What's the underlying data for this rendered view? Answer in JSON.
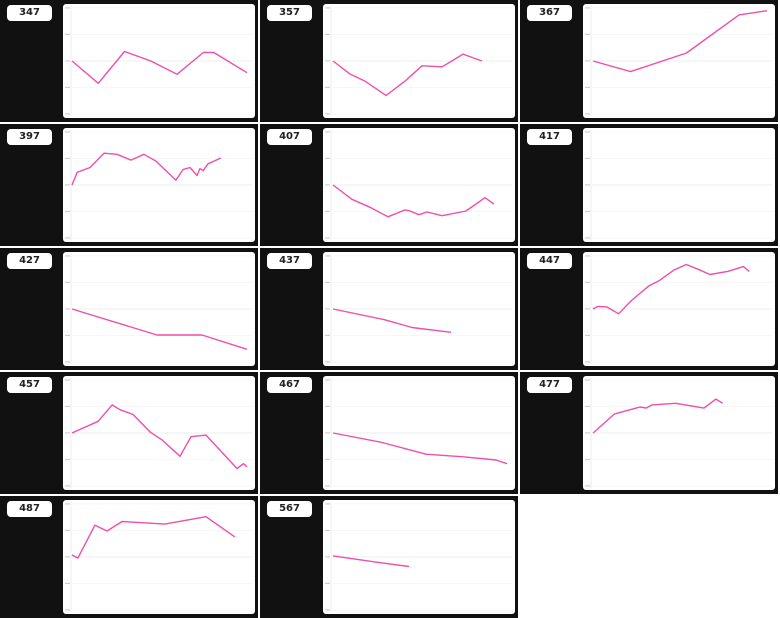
{
  "line_color": "#ef4fa8",
  "chart_data": [
    {
      "type": "line",
      "title": "347",
      "ylim": [
        -1,
        1
      ],
      "xlim": [
        0,
        100
      ],
      "grid": true,
      "points": [
        [
          0,
          0
        ],
        [
          15,
          -0.42
        ],
        [
          30,
          0.18
        ],
        [
          45,
          0
        ],
        [
          60,
          -0.25
        ],
        [
          75,
          0.16
        ],
        [
          81,
          0.16
        ],
        [
          100,
          -0.22
        ]
      ]
    },
    {
      "type": "line",
      "title": "357",
      "ylim": [
        -1,
        1
      ],
      "xlim": [
        0,
        100
      ],
      "grid": true,
      "points": [
        [
          0.6,
          0
        ],
        [
          10,
          -0.24
        ],
        [
          18.8,
          -0.38
        ],
        [
          30.9,
          -0.65
        ],
        [
          41.7,
          -0.38
        ],
        [
          51.4,
          -0.09
        ],
        [
          62.9,
          -0.11
        ],
        [
          74.9,
          0.13
        ],
        [
          85.7,
          0
        ]
      ]
    },
    {
      "type": "line",
      "title": "367",
      "ylim": [
        -1,
        1
      ],
      "xlim": [
        0,
        100
      ],
      "grid": true,
      "points": [
        [
          0.6,
          0
        ],
        [
          22,
          -0.2
        ],
        [
          54,
          0.15
        ],
        [
          84,
          0.87
        ],
        [
          100,
          0.95
        ]
      ]
    },
    {
      "type": "line",
      "title": "397",
      "ylim": [
        -1,
        1
      ],
      "xlim": [
        0,
        100
      ],
      "grid": true,
      "points": [
        [
          0,
          0
        ],
        [
          3,
          0.24
        ],
        [
          10.3,
          0.33
        ],
        [
          18.3,
          0.6
        ],
        [
          25.7,
          0.58
        ],
        [
          33.7,
          0.47
        ],
        [
          41.1,
          0.58
        ],
        [
          48,
          0.45
        ],
        [
          59.4,
          0.09
        ],
        [
          63.4,
          0.29
        ],
        [
          67.4,
          0.33
        ],
        [
          71.4,
          0.18
        ],
        [
          73.1,
          0.31
        ],
        [
          74.9,
          0.27
        ],
        [
          77.7,
          0.4
        ],
        [
          85.1,
          0.51
        ]
      ]
    },
    {
      "type": "line",
      "title": "407",
      "ylim": [
        -1,
        1
      ],
      "xlim": [
        0,
        100
      ],
      "grid": true,
      "points": [
        [
          0.6,
          0
        ],
        [
          11.4,
          -0.27
        ],
        [
          21.7,
          -0.42
        ],
        [
          32,
          -0.6
        ],
        [
          41.7,
          -0.47
        ],
        [
          44.6,
          -0.49
        ],
        [
          49.7,
          -0.56
        ],
        [
          54.3,
          -0.51
        ],
        [
          62.9,
          -0.58
        ],
        [
          76.6,
          -0.49
        ],
        [
          87.4,
          -0.24
        ],
        [
          92.6,
          -0.36
        ]
      ]
    },
    {
      "type": "line",
      "title": "417",
      "ylim": [
        -1,
        1
      ],
      "xlim": [
        0,
        100
      ],
      "grid": true,
      "points": []
    },
    {
      "type": "line",
      "title": "427",
      "ylim": [
        -1,
        1
      ],
      "xlim": [
        0,
        100
      ],
      "grid": true,
      "points": [
        [
          0,
          0
        ],
        [
          48.6,
          -0.49
        ],
        [
          74.3,
          -0.49
        ],
        [
          100,
          -0.76
        ]
      ]
    },
    {
      "type": "line",
      "title": "437",
      "ylim": [
        -1,
        1
      ],
      "xlim": [
        0,
        100
      ],
      "grid": true,
      "points": [
        [
          0.6,
          0
        ],
        [
          29.7,
          -0.2
        ],
        [
          45.7,
          -0.35
        ],
        [
          68,
          -0.44
        ]
      ]
    },
    {
      "type": "line",
      "title": "447",
      "ylim": [
        -1,
        1
      ],
      "xlim": [
        0,
        100
      ],
      "grid": true,
      "points": [
        [
          0.6,
          0
        ],
        [
          3.4,
          0.05
        ],
        [
          8.4,
          0.04
        ],
        [
          15.2,
          -0.09
        ],
        [
          22.5,
          0.16
        ],
        [
          32.6,
          0.44
        ],
        [
          38.2,
          0.53
        ],
        [
          46.6,
          0.73
        ],
        [
          53.9,
          0.84
        ],
        [
          60.7,
          0.75
        ],
        [
          67.4,
          0.65
        ],
        [
          77.5,
          0.71
        ],
        [
          86.5,
          0.8
        ],
        [
          89.9,
          0.71
        ]
      ]
    },
    {
      "type": "line",
      "title": "457",
      "ylim": [
        -1,
        1
      ],
      "xlim": [
        0,
        100
      ],
      "grid": true,
      "points": [
        [
          0,
          0
        ],
        [
          14.9,
          0.22
        ],
        [
          22.9,
          0.53
        ],
        [
          27.4,
          0.44
        ],
        [
          34.9,
          0.35
        ],
        [
          44.6,
          0.02
        ],
        [
          51.4,
          -0.13
        ],
        [
          61.7,
          -0.44
        ],
        [
          68,
          -0.07
        ],
        [
          76.6,
          -0.04
        ],
        [
          94.3,
          -0.67
        ],
        [
          98,
          -0.58
        ],
        [
          100,
          -0.64
        ]
      ]
    },
    {
      "type": "line",
      "title": "467",
      "ylim": [
        -1,
        1
      ],
      "xlim": [
        0,
        100
      ],
      "grid": true,
      "points": [
        [
          0.6,
          0
        ],
        [
          28.6,
          -0.18
        ],
        [
          53.7,
          -0.4
        ],
        [
          74.9,
          -0.45
        ],
        [
          93.7,
          -0.51
        ],
        [
          100,
          -0.58
        ]
      ]
    },
    {
      "type": "line",
      "title": "477",
      "ylim": [
        -1,
        1
      ],
      "xlim": [
        0,
        100
      ],
      "grid": true,
      "points": [
        [
          0.6,
          0
        ],
        [
          12.9,
          0.36
        ],
        [
          27.5,
          0.49
        ],
        [
          30.9,
          0.47
        ],
        [
          34.3,
          0.53
        ],
        [
          47.8,
          0.56
        ],
        [
          64,
          0.47
        ],
        [
          70.8,
          0.64
        ],
        [
          74.7,
          0.56
        ]
      ]
    },
    {
      "type": "line",
      "title": "487",
      "ylim": [
        -1,
        1
      ],
      "xlim": [
        0,
        100
      ],
      "grid": true,
      "points": [
        [
          0,
          0.04
        ],
        [
          3.4,
          -0.02
        ],
        [
          13.1,
          0.6
        ],
        [
          20,
          0.49
        ],
        [
          28.6,
          0.67
        ],
        [
          53.1,
          0.62
        ],
        [
          76.6,
          0.76
        ],
        [
          93.1,
          0.38
        ]
      ]
    },
    {
      "type": "line",
      "title": "567",
      "ylim": [
        -1,
        1
      ],
      "xlim": [
        0,
        100
      ],
      "grid": true,
      "points": [
        [
          0.6,
          0.02
        ],
        [
          28,
          -0.11
        ],
        [
          44,
          -0.18
        ]
      ]
    }
  ]
}
